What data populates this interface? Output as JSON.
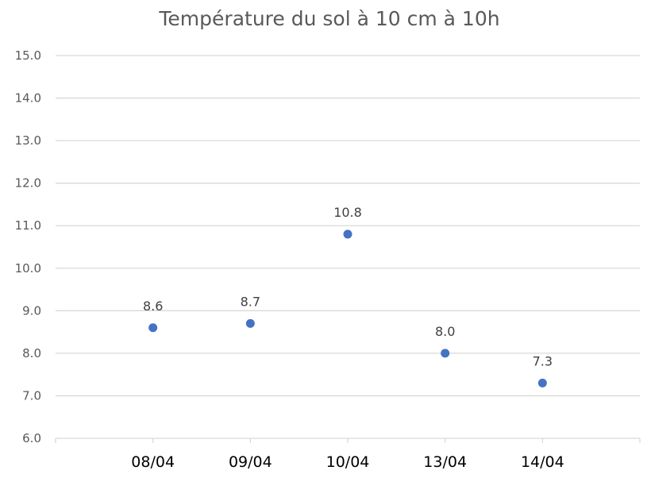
{
  "chart_data": {
    "type": "scatter",
    "title": "Température du sol à 10 cm à 10h",
    "xlabel": "",
    "ylabel": "",
    "categories": [
      "08/04",
      "09/04",
      "10/04",
      "13/04",
      "14/04"
    ],
    "values": [
      8.6,
      8.7,
      10.8,
      8.0,
      7.3
    ],
    "data_labels": [
      "8.6",
      "8.7",
      "10.8",
      "8.0",
      "7.3"
    ],
    "ylim": [
      6.0,
      15.0
    ],
    "yticks": [
      "6.0",
      "7.0",
      "8.0",
      "9.0",
      "10.0",
      "11.0",
      "12.0",
      "13.0",
      "14.0",
      "15.0"
    ],
    "grid": true,
    "legend": "none",
    "colors": {
      "point": "#4472C4",
      "grid": "#D9D9D9"
    }
  }
}
